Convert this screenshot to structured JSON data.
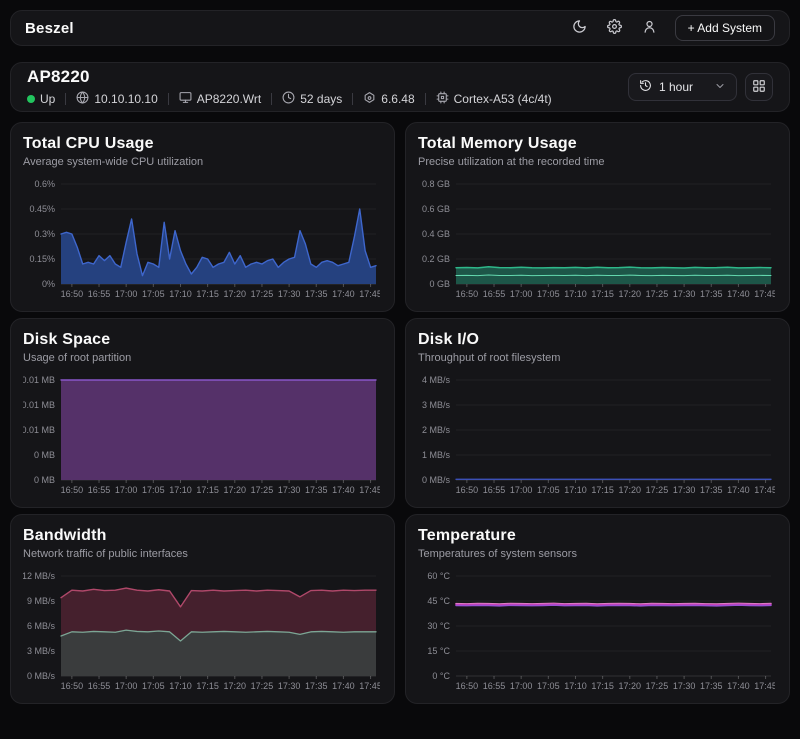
{
  "header": {
    "brand": "Beszel",
    "add_system_label": "+ Add System"
  },
  "system": {
    "name": "AP8220",
    "status": "Up",
    "ip": "10.10.10.10",
    "hostname": "AP8220.Wrt",
    "uptime": "52 days",
    "version": "6.6.48",
    "chip": "Cortex-A53 (4c/4t)",
    "time_range": "1 hour"
  },
  "icons": {
    "moon-icon": "crescent moon (theme toggle)",
    "settings-icon": "gear",
    "user-icon": "person silhouette",
    "plus-icon": "+",
    "globe-icon": "globe",
    "monitor-icon": "desktop monitor",
    "clock-icon": "clock",
    "version-icon": "agent version tag",
    "cpu-chip-icon": "cpu chip",
    "history-icon": "clock with back-arrow",
    "chevron-down-icon": "⌄",
    "grid-layout-icon": "2x2 squares",
    "status-dot": "green circle"
  },
  "colors": {
    "page_bg": "#09090b",
    "card_bg": "#151518",
    "status_up": "#22c55e",
    "cpu": "#3e66cc",
    "memory": "#2eb88a",
    "disk": "#8a56c9",
    "bandwidth_sent": "#b0486a",
    "bandwidth_recv": "#7ca695",
    "temperature": "#cb3fb6"
  },
  "chart_data": [
    {
      "id": "cpu",
      "type": "area",
      "title": "Total CPU Usage",
      "subtitle": "Average system-wide CPU utilization",
      "ylim": [
        0,
        0.6
      ],
      "xdomain": [
        0,
        58
      ],
      "grid": true,
      "legend": "none",
      "yticks": [
        {
          "v": 0,
          "label": "0%"
        },
        {
          "v": 0.15,
          "label": "0.15%"
        },
        {
          "v": 0.3,
          "label": "0.3%"
        },
        {
          "v": 0.45,
          "label": "0.45%"
        },
        {
          "v": 0.6,
          "label": "0.6%"
        }
      ],
      "xticks": [
        {
          "t": 2,
          "label": "16:50"
        },
        {
          "t": 7,
          "label": "16:55"
        },
        {
          "t": 12,
          "label": "17:00"
        },
        {
          "t": 17,
          "label": "17:05"
        },
        {
          "t": 22,
          "label": "17:10"
        },
        {
          "t": 27,
          "label": "17:15"
        },
        {
          "t": 32,
          "label": "17:20"
        },
        {
          "t": 37,
          "label": "17:25"
        },
        {
          "t": 42,
          "label": "17:30"
        },
        {
          "t": 47,
          "label": "17:35"
        },
        {
          "t": 52,
          "label": "17:40"
        },
        {
          "t": 57,
          "label": "17:45"
        }
      ],
      "series": [
        {
          "name": "cpu %",
          "stroke": "#3e66cc",
          "fill": "#25417f",
          "w": 1.4,
          "t0": 0,
          "step": 1,
          "values": [
            0.3,
            0.31,
            0.3,
            0.22,
            0.12,
            0.13,
            0.12,
            0.17,
            0.14,
            0.17,
            0.12,
            0.1,
            0.25,
            0.39,
            0.18,
            0.05,
            0.13,
            0.12,
            0.1,
            0.37,
            0.15,
            0.32,
            0.2,
            0.12,
            0.06,
            0.1,
            0.16,
            0.15,
            0.1,
            0.12,
            0.13,
            0.19,
            0.12,
            0.17,
            0.1,
            0.12,
            0.13,
            0.12,
            0.14,
            0.15,
            0.1,
            0.13,
            0.15,
            0.16,
            0.32,
            0.24,
            0.12,
            0.1,
            0.13,
            0.14,
            0.13,
            0.11,
            0.12,
            0.13,
            0.28,
            0.45,
            0.2,
            0.1,
            0.11
          ]
        }
      ]
    },
    {
      "id": "memory",
      "type": "area",
      "title": "Total Memory Usage",
      "subtitle": "Precise utilization at the recorded time",
      "ylim": [
        0,
        0.8
      ],
      "xdomain": [
        0,
        58
      ],
      "grid": true,
      "legend": "none",
      "yticks": [
        {
          "v": 0,
          "label": "0 GB"
        },
        {
          "v": 0.2,
          "label": "0.2 GB"
        },
        {
          "v": 0.4,
          "label": "0.4 GB"
        },
        {
          "v": 0.6,
          "label": "0.6 GB"
        },
        {
          "v": 0.8,
          "label": "0.8 GB"
        }
      ],
      "xticks": [
        {
          "t": 2,
          "label": "16:50"
        },
        {
          "t": 7,
          "label": "16:55"
        },
        {
          "t": 12,
          "label": "17:00"
        },
        {
          "t": 17,
          "label": "17:05"
        },
        {
          "t": 22,
          "label": "17:10"
        },
        {
          "t": 27,
          "label": "17:15"
        },
        {
          "t": 32,
          "label": "17:20"
        },
        {
          "t": 37,
          "label": "17:25"
        },
        {
          "t": 42,
          "label": "17:30"
        },
        {
          "t": 47,
          "label": "17:35"
        },
        {
          "t": 52,
          "label": "17:40"
        },
        {
          "t": 57,
          "label": "17:45"
        }
      ],
      "series": [
        {
          "name": "total GB",
          "stroke": "#2eb88a",
          "fill": "#1d5648",
          "w": 1.4,
          "t0": 0,
          "step": 2,
          "values": [
            0.13,
            0.132,
            0.129,
            0.138,
            0.131,
            0.13,
            0.134,
            0.13,
            0.129,
            0.131,
            0.13,
            0.133,
            0.129,
            0.134,
            0.13,
            0.131,
            0.135,
            0.13,
            0.129,
            0.132,
            0.13,
            0.128,
            0.133,
            0.13,
            0.131,
            0.134,
            0.129,
            0.13,
            0.132,
            0.13
          ]
        },
        {
          "name": "used GB",
          "stroke": "#63d8ae",
          "w": 1.1,
          "t0": 0,
          "step": 2,
          "values": [
            0.068,
            0.069,
            0.067,
            0.072,
            0.068,
            0.068,
            0.07,
            0.067,
            0.068,
            0.069,
            0.068,
            0.07,
            0.067,
            0.07,
            0.068,
            0.068,
            0.071,
            0.068,
            0.067,
            0.069,
            0.068,
            0.067,
            0.07,
            0.068,
            0.068,
            0.07,
            0.067,
            0.068,
            0.069,
            0.068
          ]
        }
      ]
    },
    {
      "id": "disk",
      "type": "area",
      "title": "Disk Space",
      "subtitle": "Usage of root partition",
      "ylim": [
        0,
        0.0102
      ],
      "xdomain": [
        0,
        58
      ],
      "grid": true,
      "legend": "none",
      "yticks": [
        {
          "v": 0,
          "label": "0 MB"
        },
        {
          "v": 0.00255,
          "label": "0 MB"
        },
        {
          "v": 0.0051,
          "label": "0.01 MB"
        },
        {
          "v": 0.00765,
          "label": "0.01 MB"
        },
        {
          "v": 0.0102,
          "label": "0.01 MB"
        }
      ],
      "xticks": [
        {
          "t": 2,
          "label": "16:50"
        },
        {
          "t": 7,
          "label": "16:55"
        },
        {
          "t": 12,
          "label": "17:00"
        },
        {
          "t": 17,
          "label": "17:05"
        },
        {
          "t": 22,
          "label": "17:10"
        },
        {
          "t": 27,
          "label": "17:15"
        },
        {
          "t": 32,
          "label": "17:20"
        },
        {
          "t": 37,
          "label": "17:25"
        },
        {
          "t": 42,
          "label": "17:30"
        },
        {
          "t": 47,
          "label": "17:35"
        },
        {
          "t": 52,
          "label": "17:40"
        },
        {
          "t": 57,
          "label": "17:45"
        }
      ],
      "series": [
        {
          "name": "disk used MB",
          "stroke": "#8a56c9",
          "fill": "#553169",
          "w": 1.4,
          "t0": 0,
          "step": 58,
          "values": [
            0.0102,
            0.0102
          ]
        }
      ]
    },
    {
      "id": "diskio",
      "type": "line",
      "title": "Disk I/O",
      "subtitle": "Throughput of root filesystem",
      "ylim": [
        0,
        4
      ],
      "xdomain": [
        0,
        58
      ],
      "grid": true,
      "legend": "none",
      "yticks": [
        {
          "v": 0,
          "label": "0 MB/s"
        },
        {
          "v": 1,
          "label": "1 MB/s"
        },
        {
          "v": 2,
          "label": "2 MB/s"
        },
        {
          "v": 3,
          "label": "3 MB/s"
        },
        {
          "v": 4,
          "label": "4 MB/s"
        }
      ],
      "xticks": [
        {
          "t": 2,
          "label": "16:50"
        },
        {
          "t": 7,
          "label": "16:55"
        },
        {
          "t": 12,
          "label": "17:00"
        },
        {
          "t": 17,
          "label": "17:05"
        },
        {
          "t": 22,
          "label": "17:10"
        },
        {
          "t": 27,
          "label": "17:15"
        },
        {
          "t": 32,
          "label": "17:20"
        },
        {
          "t": 37,
          "label": "17:25"
        },
        {
          "t": 42,
          "label": "17:30"
        },
        {
          "t": 47,
          "label": "17:35"
        },
        {
          "t": 52,
          "label": "17:40"
        },
        {
          "t": 57,
          "label": "17:45"
        }
      ],
      "series": [
        {
          "name": "write MB/s",
          "stroke": "#3e55c8",
          "w": 1.3,
          "t0": 0,
          "step": 58,
          "values": [
            0.03,
            0.03
          ]
        }
      ]
    },
    {
      "id": "bandwidth",
      "type": "area",
      "title": "Bandwidth",
      "subtitle": "Network traffic of public interfaces",
      "ylim": [
        0,
        12
      ],
      "xdomain": [
        0,
        58
      ],
      "grid": true,
      "legend": "none",
      "yticks": [
        {
          "v": 0,
          "label": "0 MB/s"
        },
        {
          "v": 3,
          "label": "3 MB/s"
        },
        {
          "v": 6,
          "label": "6 MB/s"
        },
        {
          "v": 9,
          "label": "9 MB/s"
        },
        {
          "v": 12,
          "label": "12 MB/s"
        }
      ],
      "xticks": [
        {
          "t": 2,
          "label": "16:50"
        },
        {
          "t": 7,
          "label": "16:55"
        },
        {
          "t": 12,
          "label": "17:00"
        },
        {
          "t": 17,
          "label": "17:05"
        },
        {
          "t": 22,
          "label": "17:10"
        },
        {
          "t": 27,
          "label": "17:15"
        },
        {
          "t": 32,
          "label": "17:20"
        },
        {
          "t": 37,
          "label": "17:25"
        },
        {
          "t": 42,
          "label": "17:30"
        },
        {
          "t": 47,
          "label": "17:35"
        },
        {
          "t": 52,
          "label": "17:40"
        },
        {
          "t": 57,
          "label": "17:45"
        }
      ],
      "series": [
        {
          "name": "sent MB/s",
          "stroke": "#b0486a",
          "fill": "#45202d",
          "w": 1.4,
          "t0": 0,
          "step": 2,
          "values": [
            9.4,
            10.3,
            10.2,
            10.4,
            10.25,
            10.3,
            10.55,
            10.3,
            10.2,
            10.35,
            10.2,
            8.3,
            10.25,
            10.2,
            10.3,
            10.2,
            10.25,
            10.3,
            10.2,
            10.3,
            10.25,
            10.2,
            9.5,
            10.25,
            10.3,
            10.2,
            10.3,
            10.25,
            10.3,
            10.3
          ]
        },
        {
          "name": "received MB/s",
          "stroke": "#7ca695",
          "fill": "#3a3c3d",
          "w": 1.3,
          "t0": 0,
          "step": 2,
          "values": [
            4.8,
            5.3,
            5.25,
            5.35,
            5.3,
            5.25,
            5.5,
            5.35,
            5.3,
            5.4,
            5.3,
            4.2,
            5.3,
            5.25,
            5.3,
            5.35,
            5.3,
            5.25,
            5.3,
            5.35,
            5.3,
            5.25,
            5.0,
            5.3,
            5.35,
            5.3,
            5.25,
            5.3,
            5.3,
            5.3
          ]
        }
      ]
    },
    {
      "id": "temperature",
      "type": "line",
      "title": "Temperature",
      "subtitle": "Temperatures of system sensors",
      "ylim": [
        0,
        60
      ],
      "xdomain": [
        0,
        58
      ],
      "grid": true,
      "legend": "none",
      "yticks": [
        {
          "v": 0,
          "label": "0 °C"
        },
        {
          "v": 15,
          "label": "15 °C"
        },
        {
          "v": 30,
          "label": "30 °C"
        },
        {
          "v": 45,
          "label": "45 °C"
        },
        {
          "v": 60,
          "label": "60 °C"
        }
      ],
      "xticks": [
        {
          "t": 2,
          "label": "16:50"
        },
        {
          "t": 7,
          "label": "16:55"
        },
        {
          "t": 12,
          "label": "17:00"
        },
        {
          "t": 17,
          "label": "17:05"
        },
        {
          "t": 22,
          "label": "17:10"
        },
        {
          "t": 27,
          "label": "17:15"
        },
        {
          "t": 32,
          "label": "17:20"
        },
        {
          "t": 37,
          "label": "17:25"
        },
        {
          "t": 42,
          "label": "17:30"
        },
        {
          "t": 47,
          "label": "17:35"
        },
        {
          "t": 52,
          "label": "17:40"
        },
        {
          "t": 57,
          "label": "17:45"
        }
      ],
      "series": [
        {
          "name": "sensor 1 °C",
          "stroke": "#e287cb",
          "w": 1.5,
          "t0": 0,
          "step": 2,
          "values": [
            43.4,
            43.3,
            43.5,
            43.4,
            43.2,
            43.5,
            43.4,
            43.3,
            43.4,
            43.6,
            43.3,
            43.4,
            43.5,
            43.2,
            43.4,
            43.5,
            43.4,
            43.2,
            43.5,
            43.4,
            43.3,
            43.4,
            43.5,
            43.3,
            43.2,
            43.4,
            43.6,
            43.4,
            43.3,
            43.5
          ]
        },
        {
          "name": "sensor 2 °C",
          "stroke": "#cb3fb6",
          "w": 1.5,
          "t0": 0,
          "step": 2,
          "values": [
            42.9,
            42.8,
            43.0,
            42.9,
            42.7,
            43.0,
            42.9,
            42.8,
            42.9,
            43.1,
            42.8,
            42.9,
            43.0,
            42.7,
            42.9,
            43.0,
            42.9,
            42.7,
            43.0,
            42.9,
            42.8,
            42.9,
            43.0,
            42.8,
            42.7,
            42.9,
            43.1,
            42.9,
            42.8,
            43.0
          ]
        },
        {
          "name": "sensor 3 °C",
          "stroke": "#9950d4",
          "w": 1.5,
          "t0": 0,
          "step": 2,
          "values": [
            42.3,
            42.2,
            42.4,
            42.3,
            42.1,
            42.4,
            42.3,
            42.2,
            42.3,
            42.5,
            42.2,
            42.3,
            42.4,
            42.1,
            42.3,
            42.4,
            42.3,
            42.1,
            42.4,
            42.3,
            42.2,
            42.3,
            42.4,
            42.2,
            42.1,
            42.3,
            42.5,
            42.3,
            42.2,
            42.4
          ]
        }
      ]
    }
  ]
}
